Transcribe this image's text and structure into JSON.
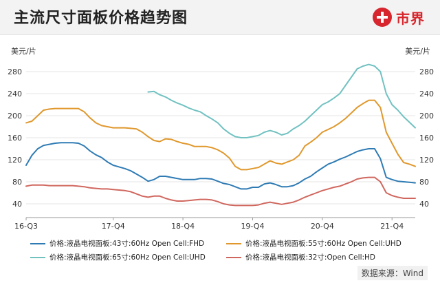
{
  "header": {
    "title": "主流尺寸面板价格趋势图",
    "brand": "市界"
  },
  "units": {
    "left": "美元/片",
    "right": "美元/片"
  },
  "source": "数据来源：Wind",
  "colors": {
    "series": [
      "#2e7bb4",
      "#e0982c",
      "#71c1c1",
      "#d0675e"
    ],
    "grid": "#e6e6e6",
    "axis": "#999999"
  },
  "chart_data": {
    "type": "line",
    "x_ticks": [
      "16-Q3",
      "17-Q4",
      "18-Q4",
      "19-Q4",
      "20-Q4",
      "21-Q4"
    ],
    "x_tick_positions": [
      0,
      15,
      27,
      39,
      51,
      63
    ],
    "x_range": [
      0,
      67
    ],
    "ylim": [
      20,
      300
    ],
    "y_ticks": [
      40,
      80,
      120,
      160,
      200,
      240,
      280
    ],
    "grid": true,
    "legend_position": "bottom",
    "series": [
      {
        "name": "价格:液晶电视面板:43寸:60Hz Open Cell:FHD",
        "x": [
          0,
          1,
          2,
          3,
          4,
          5,
          6,
          7,
          8,
          9,
          10,
          11,
          12,
          13,
          14,
          15,
          16,
          17,
          18,
          19,
          20,
          21,
          22,
          23,
          24,
          25,
          26,
          27,
          28,
          29,
          30,
          31,
          32,
          33,
          34,
          35,
          36,
          37,
          38,
          39,
          40,
          41,
          42,
          43,
          44,
          45,
          46,
          47,
          48,
          49,
          50,
          51,
          52,
          53,
          54,
          55,
          56,
          57,
          58,
          59,
          60,
          61,
          62,
          63,
          64,
          65,
          66,
          67
        ],
        "values": [
          110,
          128,
          140,
          146,
          148,
          150,
          151,
          151,
          151,
          150,
          145,
          136,
          129,
          124,
          116,
          110,
          107,
          104,
          100,
          94,
          88,
          81,
          84,
          90,
          90,
          88,
          86,
          84,
          84,
          84,
          86,
          86,
          85,
          81,
          77,
          75,
          71,
          67,
          67,
          70,
          70,
          76,
          78,
          75,
          71,
          71,
          73,
          78,
          85,
          90,
          98,
          105,
          112,
          116,
          121,
          125,
          130,
          135,
          138,
          140,
          140,
          122,
          88,
          84,
          81,
          80,
          79,
          78
        ]
      },
      {
        "name": "价格:液晶电视面板:55寸:60Hz Open Cell:UHD",
        "x": [
          0,
          1,
          2,
          3,
          4,
          5,
          6,
          7,
          8,
          9,
          10,
          11,
          12,
          13,
          14,
          15,
          16,
          17,
          18,
          19,
          20,
          21,
          22,
          23,
          24,
          25,
          26,
          27,
          28,
          29,
          30,
          31,
          32,
          33,
          34,
          35,
          36,
          37,
          38,
          39,
          40,
          41,
          42,
          43,
          44,
          45,
          46,
          47,
          48,
          49,
          50,
          51,
          52,
          53,
          54,
          55,
          56,
          57,
          58,
          59,
          60,
          61,
          62,
          63,
          64,
          65,
          66,
          67
        ],
        "values": [
          187,
          190,
          200,
          210,
          212,
          213,
          213,
          213,
          213,
          213,
          207,
          196,
          187,
          182,
          180,
          178,
          178,
          178,
          177,
          176,
          170,
          162,
          155,
          153,
          158,
          157,
          153,
          150,
          148,
          144,
          144,
          144,
          142,
          138,
          132,
          123,
          108,
          102,
          102,
          104,
          106,
          112,
          118,
          114,
          112,
          116,
          120,
          128,
          145,
          152,
          160,
          170,
          175,
          180,
          187,
          195,
          205,
          215,
          222,
          228,
          228,
          215,
          170,
          150,
          130,
          115,
          112,
          108
        ]
      },
      {
        "name": "价格:液晶电视面板:65寸:60Hz Open Cell:UHD",
        "x": [
          21,
          22,
          23,
          24,
          25,
          26,
          27,
          28,
          29,
          30,
          31,
          32,
          33,
          34,
          35,
          36,
          37,
          38,
          39,
          40,
          41,
          42,
          43,
          44,
          45,
          46,
          47,
          48,
          49,
          50,
          51,
          52,
          53,
          54,
          55,
          56,
          57,
          58,
          59,
          60,
          61,
          62,
          63,
          64,
          65,
          66,
          67
        ],
        "values": [
          243,
          244,
          238,
          234,
          228,
          223,
          219,
          214,
          210,
          207,
          200,
          194,
          187,
          176,
          168,
          162,
          160,
          160,
          162,
          164,
          170,
          173,
          170,
          165,
          168,
          176,
          182,
          190,
          200,
          210,
          220,
          225,
          232,
          240,
          255,
          270,
          285,
          290,
          293,
          290,
          280,
          240,
          220,
          210,
          198,
          188,
          178
        ]
      },
      {
        "name": "价格:液晶电视面板:32寸:Open Cell:HD",
        "x": [
          0,
          1,
          2,
          3,
          4,
          5,
          6,
          7,
          8,
          9,
          10,
          11,
          12,
          13,
          14,
          15,
          16,
          17,
          18,
          19,
          20,
          21,
          22,
          23,
          24,
          25,
          26,
          27,
          28,
          29,
          30,
          31,
          32,
          33,
          34,
          35,
          36,
          37,
          38,
          39,
          40,
          41,
          42,
          43,
          44,
          45,
          46,
          47,
          48,
          49,
          50,
          51,
          52,
          53,
          54,
          55,
          56,
          57,
          58,
          59,
          60,
          61,
          62,
          63,
          64,
          65,
          66,
          67
        ],
        "values": [
          72,
          74,
          74,
          74,
          73,
          73,
          73,
          73,
          73,
          72,
          71,
          69,
          68,
          67,
          67,
          66,
          65,
          64,
          62,
          58,
          54,
          52,
          54,
          54,
          50,
          47,
          45,
          45,
          46,
          47,
          48,
          48,
          47,
          44,
          40,
          38,
          37,
          37,
          37,
          37,
          38,
          41,
          43,
          41,
          39,
          41,
          43,
          47,
          52,
          56,
          60,
          64,
          67,
          70,
          72,
          76,
          80,
          85,
          87,
          88,
          88,
          80,
          60,
          55,
          52,
          50,
          50,
          50
        ]
      }
    ]
  }
}
